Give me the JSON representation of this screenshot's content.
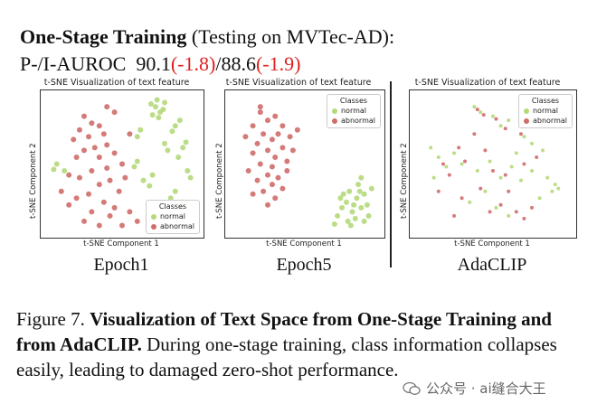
{
  "header": {
    "line1_bold": "One-Stage Training",
    "line1_rest": "(Testing on MVTec-AD):",
    "metric_label": "P-/I-AUROC",
    "value1": "90.1",
    "delta1": "(-1.8)",
    "sep": "/",
    "value2": "88.6",
    "delta2": "(-1.9)"
  },
  "colors": {
    "normal": "#b5d97a",
    "abnormal": "#cf6d6a",
    "red": "#e02020"
  },
  "panels": [
    {
      "title": "t-SNE Visualization of text feature",
      "xlabel": "t-SNE Component 1",
      "ylabel": "t-SNE Component 2",
      "caption": "Epoch1",
      "legend": {
        "title": "Classes",
        "items": [
          "normal",
          "abnormal"
        ]
      }
    },
    {
      "title": "t-SNE Visualization of text feature",
      "xlabel": "t-SNE Component 1",
      "ylabel": "t-SNE Component 2",
      "caption": "Epoch5",
      "legend": {
        "title": "Classes",
        "items": [
          "normal",
          "abnormal"
        ]
      }
    },
    {
      "title": "t-SNE Visualization of text feature",
      "xlabel": "t-SNE Component 1",
      "ylabel": "t-SNE Component 2",
      "caption": "AdaCLIP",
      "legend": {
        "title": "Classes",
        "items": [
          "normal",
          "abnormal"
        ]
      }
    }
  ],
  "chart_data": [
    {
      "type": "scatter",
      "title": "t-SNE Visualization of text feature",
      "xlabel": "t-SNE Component 1",
      "ylabel": "t-SNE Component 2",
      "legend_position": "bottom-right",
      "series": [
        {
          "name": "normal",
          "points": [
            [
              0.72,
              0.92
            ],
            [
              0.75,
              0.88
            ],
            [
              0.78,
              0.95
            ],
            [
              0.7,
              0.86
            ],
            [
              0.74,
              0.84
            ],
            [
              0.69,
              0.94
            ],
            [
              0.77,
              0.9
            ],
            [
              0.73,
              0.97
            ],
            [
              0.85,
              0.78
            ],
            [
              0.88,
              0.82
            ],
            [
              0.83,
              0.74
            ],
            [
              0.9,
              0.62
            ],
            [
              0.92,
              0.66
            ],
            [
              0.87,
              0.55
            ],
            [
              0.8,
              0.6
            ],
            [
              0.78,
              0.65
            ],
            [
              0.62,
              0.75
            ],
            [
              0.6,
              0.7
            ],
            [
              0.93,
              0.45
            ],
            [
              0.95,
              0.4
            ],
            [
              0.68,
              0.34
            ],
            [
              0.64,
              0.38
            ],
            [
              0.7,
              0.42
            ],
            [
              0.07,
              0.5
            ],
            [
              0.05,
              0.46
            ],
            [
              0.85,
              0.3
            ],
            [
              0.82,
              0.25
            ],
            [
              0.88,
              0.18
            ],
            [
              0.9,
              0.22
            ],
            [
              0.12,
              0.45
            ],
            [
              0.6,
              0.52
            ],
            [
              0.58,
              0.48
            ]
          ]
        },
        {
          "name": "abnormal",
          "points": [
            [
              0.25,
              0.85
            ],
            [
              0.3,
              0.8
            ],
            [
              0.22,
              0.75
            ],
            [
              0.35,
              0.78
            ],
            [
              0.28,
              0.7
            ],
            [
              0.38,
              0.72
            ],
            [
              0.18,
              0.68
            ],
            [
              0.32,
              0.62
            ],
            [
              0.25,
              0.6
            ],
            [
              0.4,
              0.64
            ],
            [
              0.2,
              0.55
            ],
            [
              0.35,
              0.55
            ],
            [
              0.45,
              0.58
            ],
            [
              0.5,
              0.5
            ],
            [
              0.4,
              0.47
            ],
            [
              0.3,
              0.45
            ],
            [
              0.22,
              0.4
            ],
            [
              0.15,
              0.42
            ],
            [
              0.42,
              0.38
            ],
            [
              0.35,
              0.35
            ],
            [
              0.48,
              0.3
            ],
            [
              0.28,
              0.28
            ],
            [
              0.2,
              0.25
            ],
            [
              0.15,
              0.2
            ],
            [
              0.38,
              0.22
            ],
            [
              0.3,
              0.15
            ],
            [
              0.42,
              0.12
            ],
            [
              0.25,
              0.08
            ],
            [
              0.35,
              0.05
            ],
            [
              0.45,
              0.18
            ],
            [
              0.55,
              0.15
            ],
            [
              0.6,
              0.08
            ],
            [
              0.5,
              0.05
            ],
            [
              0.1,
              0.3
            ],
            [
              0.52,
              0.4
            ],
            [
              0.45,
              0.88
            ],
            [
              0.4,
              0.92
            ],
            [
              0.55,
              0.72
            ]
          ]
        }
      ]
    },
    {
      "type": "scatter",
      "title": "t-SNE Visualization of text feature",
      "xlabel": "t-SNE Component 1",
      "ylabel": "t-SNE Component 2",
      "legend_position": "top-right",
      "series": [
        {
          "name": "normal",
          "points": [
            [
              0.8,
              0.3
            ],
            [
              0.85,
              0.25
            ],
            [
              0.78,
              0.22
            ],
            [
              0.88,
              0.18
            ],
            [
              0.82,
              0.15
            ],
            [
              0.9,
              0.28
            ],
            [
              0.75,
              0.18
            ],
            [
              0.84,
              0.1
            ],
            [
              0.92,
              0.2
            ],
            [
              0.79,
              0.08
            ],
            [
              0.86,
              0.35
            ],
            [
              0.72,
              0.12
            ],
            [
              0.95,
              0.32
            ],
            [
              0.81,
              0.05
            ],
            [
              0.88,
              0.4
            ],
            [
              0.76,
              0.28
            ],
            [
              0.93,
              0.12
            ],
            [
              0.7,
              0.06
            ],
            [
              0.87,
              0.3
            ],
            [
              0.83,
              0.2
            ],
            [
              0.9,
              0.08
            ],
            [
              0.74,
              0.25
            ]
          ]
        },
        {
          "name": "abnormal",
          "points": [
            [
              0.2,
              0.88
            ],
            [
              0.25,
              0.82
            ],
            [
              0.15,
              0.78
            ],
            [
              0.3,
              0.85
            ],
            [
              0.35,
              0.78
            ],
            [
              0.22,
              0.72
            ],
            [
              0.28,
              0.68
            ],
            [
              0.18,
              0.65
            ],
            [
              0.32,
              0.72
            ],
            [
              0.4,
              0.7
            ],
            [
              0.25,
              0.6
            ],
            [
              0.15,
              0.58
            ],
            [
              0.35,
              0.62
            ],
            [
              0.3,
              0.55
            ],
            [
              0.2,
              0.5
            ],
            [
              0.28,
              0.48
            ],
            [
              0.38,
              0.52
            ],
            [
              0.12,
              0.45
            ],
            [
              0.25,
              0.42
            ],
            [
              0.32,
              0.4
            ],
            [
              0.18,
              0.38
            ],
            [
              0.28,
              0.35
            ],
            [
              0.22,
              0.3
            ],
            [
              0.35,
              0.32
            ],
            [
              0.15,
              0.28
            ],
            [
              0.3,
              0.25
            ],
            [
              0.25,
              0.2
            ],
            [
              0.42,
              0.6
            ],
            [
              0.45,
              0.75
            ],
            [
              0.1,
              0.7
            ],
            [
              0.38,
              0.45
            ],
            [
              0.2,
              0.92
            ]
          ]
        }
      ]
    },
    {
      "type": "scatter",
      "title": "t-SNE Visualization of text feature",
      "xlabel": "t-SNE Component 1",
      "ylabel": "t-SNE Component 2",
      "legend_position": "top-right",
      "series": [
        {
          "name": "normal",
          "points": [
            [
              0.38,
              0.92
            ],
            [
              0.42,
              0.88
            ],
            [
              0.5,
              0.85
            ],
            [
              0.55,
              0.78
            ],
            [
              0.6,
              0.82
            ],
            [
              0.7,
              0.7
            ],
            [
              0.75,
              0.65
            ],
            [
              0.82,
              0.6
            ],
            [
              0.1,
              0.62
            ],
            [
              0.15,
              0.55
            ],
            [
              0.2,
              0.48
            ],
            [
              0.25,
              0.58
            ],
            [
              0.3,
              0.5
            ],
            [
              0.4,
              0.45
            ],
            [
              0.48,
              0.52
            ],
            [
              0.55,
              0.4
            ],
            [
              0.62,
              0.48
            ],
            [
              0.68,
              0.38
            ],
            [
              0.75,
              0.45
            ],
            [
              0.85,
              0.4
            ],
            [
              0.9,
              0.35
            ],
            [
              0.92,
              0.32
            ],
            [
              0.88,
              0.3
            ],
            [
              0.12,
              0.4
            ],
            [
              0.45,
              0.3
            ],
            [
              0.35,
              0.22
            ],
            [
              0.52,
              0.18
            ],
            [
              0.6,
              0.12
            ],
            [
              0.8,
              0.25
            ],
            [
              0.65,
              0.58
            ]
          ]
        },
        {
          "name": "abnormal",
          "points": [
            [
              0.4,
              0.9
            ],
            [
              0.44,
              0.86
            ],
            [
              0.52,
              0.83
            ],
            [
              0.58,
              0.76
            ],
            [
              0.28,
              0.62
            ],
            [
              0.18,
              0.5
            ],
            [
              0.32,
              0.52
            ],
            [
              0.45,
              0.6
            ],
            [
              0.22,
              0.42
            ],
            [
              0.5,
              0.45
            ],
            [
              0.58,
              0.42
            ],
            [
              0.7,
              0.5
            ],
            [
              0.78,
              0.55
            ],
            [
              0.6,
              0.3
            ],
            [
              0.42,
              0.32
            ],
            [
              0.3,
              0.25
            ],
            [
              0.48,
              0.15
            ],
            [
              0.55,
              0.2
            ],
            [
              0.65,
              0.15
            ],
            [
              0.7,
              0.1
            ],
            [
              0.75,
              0.18
            ],
            [
              0.38,
              0.72
            ],
            [
              0.68,
              0.72
            ],
            [
              0.15,
              0.3
            ],
            [
              0.25,
              0.12
            ]
          ]
        }
      ]
    }
  ],
  "figure_caption": {
    "label": "Figure 7.",
    "bold": "Visualization of Text Space from One-Stage Training and from AdaCLIP.",
    "rest": "During one-stage training, class information collapses easily, leading to damaged zero-shot performance."
  },
  "watermark": {
    "text": "公众号 · ai缝合大王"
  }
}
